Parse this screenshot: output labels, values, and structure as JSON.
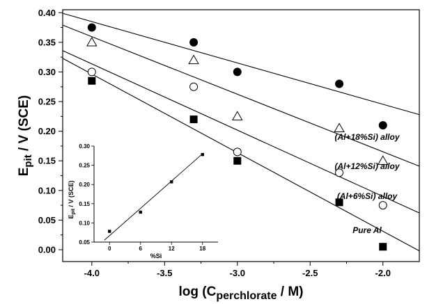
{
  "chart_data": [
    {
      "type": "scatter",
      "title": "",
      "xlabel": {
        "prefix": "log (C",
        "sub": "perchlorate",
        "suffix": " / M)"
      },
      "ylabel": {
        "prefix": "E",
        "sub": "pit",
        "suffix": " / V (SCE)"
      },
      "xlim": [
        -4.2,
        -1.75
      ],
      "ylim": [
        -0.02,
        0.405
      ],
      "xticks": [
        -4.0,
        -3.5,
        -3.0,
        -2.5,
        -2.0
      ],
      "xtick_labels": [
        "-4.0",
        "-3.5",
        "-3.0",
        "-2.5",
        "-2.0"
      ],
      "yticks": [
        0.0,
        0.05,
        0.1,
        0.15,
        0.2,
        0.25,
        0.3,
        0.35,
        0.4
      ],
      "ytick_labels": [
        "0.00",
        "0.05",
        "0.10",
        "0.15",
        "0.20",
        "0.25",
        "0.30",
        "0.35",
        "0.40"
      ],
      "grid": false,
      "series": [
        {
          "name": "(Al+18%Si) alloy",
          "marker": "filled-circle",
          "x": [
            -4.0,
            -3.3,
            -3.0,
            -2.3,
            -2.0
          ],
          "y": [
            0.375,
            0.35,
            0.3,
            0.28,
            0.21
          ],
          "fit": {
            "x": [
              -4.2,
              -1.75
            ],
            "y": [
              0.399,
              0.228
            ]
          }
        },
        {
          "name": "(Al+12%Si) alloy",
          "marker": "open-triangle",
          "x": [
            -4.0,
            -3.3,
            -3.0,
            -2.3,
            -2.0
          ],
          "y": [
            0.35,
            0.32,
            0.225,
            0.205,
            0.15
          ],
          "fit": {
            "x": [
              -4.2,
              -1.75
            ],
            "y": [
              0.379,
              0.141
            ]
          }
        },
        {
          "name": "(Al+6%Si) alloy",
          "marker": "open-circle",
          "x": [
            -4.0,
            -3.3,
            -3.0,
            -2.3,
            -2.0
          ],
          "y": [
            0.3,
            0.275,
            0.165,
            0.13,
            0.075
          ],
          "fit": {
            "x": [
              -4.2,
              -1.75
            ],
            "y": [
              0.336,
              0.062
            ]
          }
        },
        {
          "name": "Pure Al",
          "marker": "filled-square",
          "x": [
            -4.0,
            -3.3,
            -3.0,
            -2.3,
            -2.0
          ],
          "y": [
            0.285,
            0.22,
            0.15,
            0.08,
            0.005
          ],
          "fit": {
            "x": [
              -4.2,
              -1.75
            ],
            "y": [
              0.323,
              -0.002
            ]
          }
        }
      ]
    },
    {
      "type": "scatter",
      "title": "",
      "xlabel": "%Si",
      "ylabel": {
        "prefix": "E",
        "sub": "pit",
        "suffix": " / V (SCE)"
      },
      "xlim": [
        -3,
        21
      ],
      "ylim": [
        0.05,
        0.3
      ],
      "xticks": [
        0,
        6,
        12,
        18
      ],
      "xtick_labels": [
        "0",
        "6",
        "12",
        "18"
      ],
      "yticks": [
        0.05,
        0.1,
        0.15,
        0.2,
        0.25,
        0.3
      ],
      "ytick_labels": [
        "0.05",
        "0.10",
        "0.15",
        "0.20",
        "0.25",
        "0.30"
      ],
      "grid": false,
      "series": [
        {
          "marker": "filled-square",
          "x": [
            0,
            6,
            12,
            18
          ],
          "y": [
            0.078,
            0.128,
            0.207,
            0.278
          ],
          "fit": {
            "x": [
              -1,
              18
            ],
            "y": [
              0.055,
              0.28
            ]
          }
        }
      ]
    }
  ]
}
